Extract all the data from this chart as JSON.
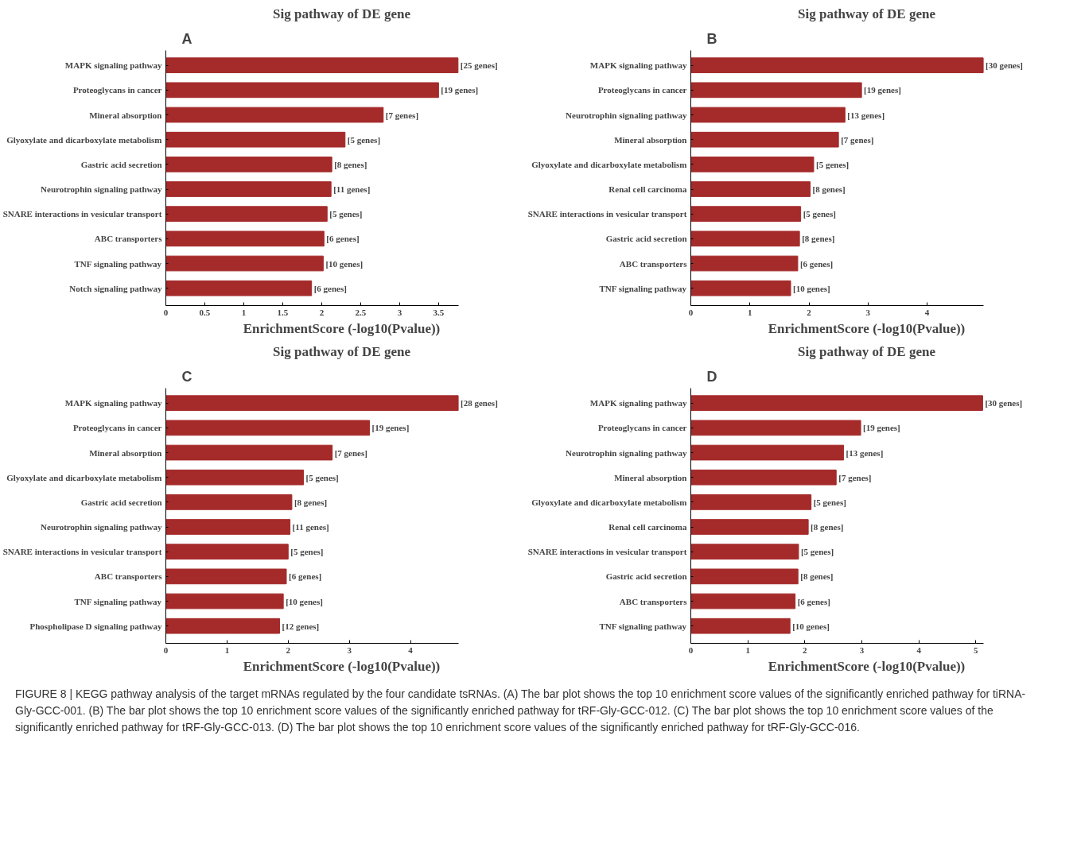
{
  "chart_data": [
    {
      "type": "bar",
      "orientation": "horizontal",
      "title": "Sig pathway of DE gene",
      "xlabel": "EnrichmentScore (-log10(Pvalue))",
      "categories": [
        "MAPK signaling pathway",
        "Proteoglycans in cancer",
        "Mineral absorption",
        "Glyoxylate and dicarboxylate metabolism",
        "Gastric acid secretion",
        "Neurotrophin signaling pathway",
        "SNARE interactions in vesicular transport",
        "ABC transporters",
        "TNF signaling pathway",
        "Notch signaling pathway"
      ],
      "values": [
        3.75,
        3.5,
        2.79,
        2.3,
        2.13,
        2.12,
        2.07,
        2.03,
        2.02,
        1.87
      ],
      "annotations": [
        "A",
        {
          "text": "[25 genes]",
          "x": 3.75,
          "y": "MAPK signaling pathway"
        },
        {
          "text": "[19 genes]",
          "x": 3.5,
          "y": "Proteoglycans in cancer"
        },
        {
          "text": "[7 genes]",
          "x": 2.79,
          "y": "Mineral absorption"
        },
        {
          "text": "[5 genes]",
          "x": 2.3,
          "y": "Glyoxylate and dicarboxylate metabolism"
        },
        {
          "text": "[8 genes]",
          "x": 2.13,
          "y": "Gastric acid secretion"
        },
        {
          "text": "[11 genes]",
          "x": 2.12,
          "y": "Neurotrophin signaling pathway"
        },
        {
          "text": "[5 genes]",
          "x": 2.07,
          "y": "SNARE interactions in vesicular transport"
        },
        {
          "text": "[6 genes]",
          "x": 2.03,
          "y": "ABC transporters"
        },
        {
          "text": "[10 genes]",
          "x": 2.02,
          "y": "TNF signaling pathway"
        },
        {
          "text": "[6 genes]",
          "x": 1.87,
          "y": "Notch signaling pathway"
        }
      ],
      "color": "#a52a2a",
      "xlim": [
        0,
        3.76
      ],
      "xticks": [
        0,
        0.5,
        1,
        1.5,
        2,
        2.5,
        3,
        3.5
      ]
    },
    {
      "type": "bar",
      "orientation": "horizontal",
      "title": "Sig pathway of DE gene",
      "xlabel": "EnrichmentScore (-log10(Pvalue))",
      "categories": [
        "MAPK signaling pathway",
        "Proteoglycans in cancer",
        "Neurotrophin signaling pathway",
        "Mineral absorption",
        "Glyoxylate and dicarboxylate metabolism",
        "Renal cell carcinoma",
        "SNARE interactions in vesicular transport",
        "Gastric acid secretion",
        "ABC transporters",
        "TNF signaling pathway"
      ],
      "values": [
        4.95,
        2.89,
        2.61,
        2.5,
        2.08,
        2.02,
        1.86,
        1.84,
        1.81,
        1.69
      ],
      "annotations": [
        "B",
        {
          "text": "[30 genes]",
          "x": 4.95,
          "y": "MAPK signaling pathway"
        },
        {
          "text": "[19 genes]",
          "x": 2.89,
          "y": "Proteoglycans in cancer"
        },
        {
          "text": "[13 genes]",
          "x": 2.61,
          "y": "Neurotrophin signaling pathway"
        },
        {
          "text": "[7 genes]",
          "x": 2.5,
          "y": "Mineral absorption"
        },
        {
          "text": "[5 genes]",
          "x": 2.08,
          "y": "Glyoxylate and dicarboxylate metabolism"
        },
        {
          "text": "[8 genes]",
          "x": 2.02,
          "y": "Renal cell carcinoma"
        },
        {
          "text": "[5 genes]",
          "x": 1.86,
          "y": "SNARE interactions in vesicular transport"
        },
        {
          "text": "[8 genes]",
          "x": 1.84,
          "y": "Gastric acid secretion"
        },
        {
          "text": "[6 genes]",
          "x": 1.81,
          "y": "ABC transporters"
        },
        {
          "text": "[10 genes]",
          "x": 1.69,
          "y": "TNF signaling pathway"
        }
      ],
      "color": "#a52a2a",
      "xlim": [
        0,
        4.96
      ],
      "xticks": [
        0,
        1,
        2,
        3,
        4
      ]
    },
    {
      "type": "bar",
      "orientation": "horizontal",
      "title": "Sig pathway of DE gene",
      "xlabel": "EnrichmentScore (-log10(Pvalue))",
      "categories": [
        "MAPK signaling pathway",
        "Proteoglycans in cancer",
        "Mineral absorption",
        "Glyoxylate and dicarboxylate metabolism",
        "Gastric acid secretion",
        "Neurotrophin signaling pathway",
        "SNARE interactions in vesicular transport",
        "ABC transporters",
        "TNF signaling pathway",
        "Phospholipase D signaling pathway"
      ],
      "values": [
        4.78,
        3.33,
        2.72,
        2.25,
        2.06,
        2.03,
        2.0,
        1.97,
        1.92,
        1.86
      ],
      "annotations": [
        "C",
        {
          "text": "[28 genes]",
          "x": 4.78,
          "y": "MAPK signaling pathway"
        },
        {
          "text": "[19 genes]",
          "x": 3.33,
          "y": "Proteoglycans in cancer"
        },
        {
          "text": "[7 genes]",
          "x": 2.72,
          "y": "Mineral absorption"
        },
        {
          "text": "[5 genes]",
          "x": 2.25,
          "y": "Glyoxylate and dicarboxylate metabolism"
        },
        {
          "text": "[8 genes]",
          "x": 2.06,
          "y": "Gastric acid secretion"
        },
        {
          "text": "[11 genes]",
          "x": 2.03,
          "y": "Neurotrophin signaling pathway"
        },
        {
          "text": "[5 genes]",
          "x": 2.0,
          "y": "SNARE interactions in vesicular transport"
        },
        {
          "text": "[6 genes]",
          "x": 1.97,
          "y": "ABC transporters"
        },
        {
          "text": "[10 genes]",
          "x": 1.92,
          "y": "TNF signaling pathway"
        },
        {
          "text": "[12 genes]",
          "x": 1.86,
          "y": "Phospholipase D signaling pathway"
        }
      ],
      "color": "#a52a2a",
      "xlim": [
        0,
        4.79
      ],
      "xticks": [
        0,
        1,
        2,
        3,
        4
      ]
    },
    {
      "type": "bar",
      "orientation": "horizontal",
      "title": "Sig pathway of DE gene",
      "xlabel": "EnrichmentScore (-log10(Pvalue))",
      "categories": [
        "MAPK signaling pathway",
        "Proteoglycans in cancer",
        "Neurotrophin signaling pathway",
        "Mineral absorption",
        "Glyoxylate and dicarboxylate metabolism",
        "Renal cell carcinoma",
        "SNARE interactions in vesicular transport",
        "Gastric acid secretion",
        "ABC transporters",
        "TNF signaling pathway"
      ],
      "values": [
        5.12,
        2.98,
        2.68,
        2.55,
        2.11,
        2.06,
        1.89,
        1.88,
        1.83,
        1.74
      ],
      "annotations": [
        "D",
        {
          "text": "[30 genes]",
          "x": 5.12,
          "y": "MAPK signaling pathway"
        },
        {
          "text": "[19 genes]",
          "x": 2.98,
          "y": "Proteoglycans in cancer"
        },
        {
          "text": "[13 genes]",
          "x": 2.68,
          "y": "Neurotrophin signaling pathway"
        },
        {
          "text": "[7 genes]",
          "x": 2.55,
          "y": "Mineral absorption"
        },
        {
          "text": "[5 genes]",
          "x": 2.11,
          "y": "Glyoxylate and dicarboxylate metabolism"
        },
        {
          "text": "[8 genes]",
          "x": 2.06,
          "y": "Renal cell carcinoma"
        },
        {
          "text": "[5 genes]",
          "x": 1.89,
          "y": "SNARE interactions in vesicular transport"
        },
        {
          "text": "[8 genes]",
          "x": 1.88,
          "y": "Gastric acid secretion"
        },
        {
          "text": "[6 genes]",
          "x": 1.83,
          "y": "ABC transporters"
        },
        {
          "text": "[10 genes]",
          "x": 1.74,
          "y": "TNF signaling pathway"
        },
        "FIGURE 8 | KEGG pathway analysis of the target mRNAs regulated by the four candidate tsRNAs. (A) The bar plot shows the top 10 enrichment score values of the significantly enriched pathway for tiRNA-Gly-GCC-001. (B) The bar plot shows the top 10 enrichment score values of the significantly enriched pathway for tRF-Gly-GCC-012. (C) The bar plot shows the top 10 enrichment score values of the significantly enriched pathway for tRF-Gly-GCC-013. (D) The bar plot shows the top 10 enrichment score values of the significantly enriched pathway for tRF-Gly-GCC-016."
      ],
      "color": "#a52a2a",
      "xlim": [
        0,
        5.14
      ],
      "xticks": [
        0,
        1,
        2,
        3,
        4,
        5
      ]
    }
  ]
}
